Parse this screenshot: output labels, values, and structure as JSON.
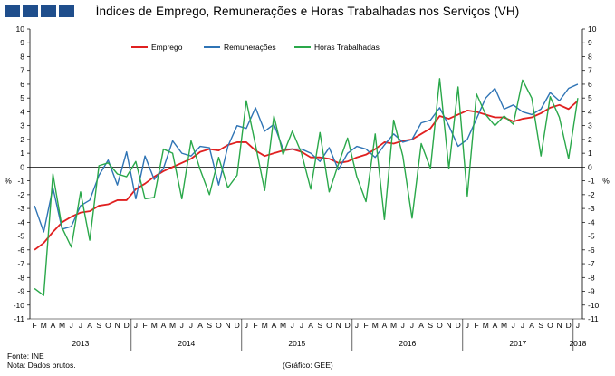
{
  "header": {
    "title": "Índices de Emprego, Remunerações e Horas Trabalhadas nos Serviços (VH)"
  },
  "footer": {
    "source": "Fonte: INE",
    "note": "Nota: Dados brutos.",
    "credit": "(Gráfico: GEE)"
  },
  "colors": {
    "emprego": "#e02020",
    "remuneracoes": "#2f74b5",
    "horas": "#2aa84a",
    "logo": "#1f4e8c"
  },
  "chart_data": {
    "type": "line",
    "title": "Índices de Emprego, Remunerações e Horas Trabalhadas nos Serviços (VH)",
    "ylabel_left": "%",
    "ylabel_right": "%",
    "ylim": [
      -11,
      10
    ],
    "yticks": [
      10,
      9,
      8,
      7,
      6,
      5,
      4,
      3,
      2,
      1,
      0,
      -1,
      -2,
      -3,
      -4,
      -5,
      -6,
      -7,
      -8,
      -9,
      -10,
      -11
    ],
    "legend_position": "top-center",
    "month_labels": [
      "F",
      "M",
      "A",
      "M",
      "J",
      "J",
      "A",
      "S",
      "O",
      "N",
      "D",
      "J",
      "F",
      "M",
      "A",
      "M",
      "J",
      "J",
      "A",
      "S",
      "O",
      "N",
      "D",
      "J",
      "F",
      "M",
      "A",
      "M",
      "J",
      "J",
      "A",
      "S",
      "O",
      "N",
      "D",
      "J",
      "F",
      "M",
      "A",
      "M",
      "J",
      "J",
      "A",
      "S",
      "O",
      "N",
      "D",
      "J",
      "F",
      "M",
      "A",
      "M",
      "J",
      "J",
      "A",
      "S",
      "O",
      "N",
      "D",
      "J"
    ],
    "year_labels": [
      {
        "label": "2013",
        "start": 0,
        "end": 10
      },
      {
        "label": "2014",
        "start": 11,
        "end": 22
      },
      {
        "label": "2015",
        "start": 23,
        "end": 34
      },
      {
        "label": "2016",
        "start": 35,
        "end": 46
      },
      {
        "label": "2017",
        "start": 47,
        "end": 58
      },
      {
        "label": "2018",
        "start": 59,
        "end": 59
      }
    ],
    "series": [
      {
        "name": "Emprego",
        "key": "emprego",
        "values": [
          -6.0,
          -5.5,
          -4.7,
          -4.0,
          -3.6,
          -3.3,
          -3.2,
          -2.8,
          -2.7,
          -2.4,
          -2.4,
          -1.6,
          -1.2,
          -0.7,
          -0.3,
          0.0,
          0.3,
          0.6,
          1.1,
          1.3,
          1.2,
          1.6,
          1.8,
          1.8,
          1.2,
          0.8,
          1.0,
          1.2,
          1.3,
          1.1,
          0.7,
          0.7,
          0.6,
          0.3,
          0.4,
          0.7,
          0.9,
          1.3,
          1.8,
          1.7,
          1.9,
          2.0,
          2.4,
          2.8,
          3.7,
          3.5,
          3.8,
          4.1,
          4.0,
          3.8,
          3.6,
          3.6,
          3.3,
          3.5,
          3.6,
          3.9,
          4.3,
          4.5,
          4.2,
          4.8
        ]
      },
      {
        "name": "Remunerações",
        "key": "remuneracoes",
        "values": [
          -2.8,
          -4.7,
          -1.5,
          -4.5,
          -4.3,
          -2.8,
          -2.4,
          -0.6,
          0.5,
          -1.3,
          1.1,
          -2.3,
          0.8,
          -0.9,
          -0.1,
          1.9,
          1.0,
          0.8,
          1.5,
          1.4,
          -1.3,
          1.5,
          3.0,
          2.8,
          4.3,
          2.6,
          3.1,
          1.3,
          1.3,
          1.3,
          1.0,
          0.4,
          1.4,
          -0.2,
          1.0,
          1.5,
          1.3,
          0.7,
          1.6,
          2.4,
          1.8,
          2.0,
          3.2,
          3.4,
          4.3,
          3.0,
          1.5,
          2.0,
          3.5,
          5.0,
          5.7,
          4.2,
          4.5,
          4.0,
          3.8,
          4.2,
          5.4,
          4.8,
          5.7,
          6.0
        ]
      },
      {
        "name": "Horas Trabalhadas",
        "key": "horas",
        "values": [
          -8.8,
          -9.3,
          -0.5,
          -4.4,
          -5.8,
          -1.8,
          -5.3,
          0.1,
          0.3,
          -0.5,
          -0.7,
          0.4,
          -2.3,
          -2.2,
          1.3,
          1.0,
          -2.3,
          1.9,
          -0.2,
          -2.0,
          0.7,
          -1.5,
          -0.6,
          4.8,
          1.6,
          -1.7,
          3.7,
          0.9,
          2.6,
          1.0,
          -1.6,
          2.5,
          -1.8,
          0.2,
          2.1,
          -0.7,
          -2.5,
          2.4,
          -3.8,
          3.4,
          0.8,
          -3.7,
          1.7,
          -0.1,
          6.4,
          -0.1,
          5.8,
          -2.1,
          5.3,
          3.8,
          3.0,
          3.7,
          3.1,
          6.3,
          5.0,
          0.8,
          5.1,
          3.6,
          0.6,
          5.0
        ]
      }
    ]
  }
}
